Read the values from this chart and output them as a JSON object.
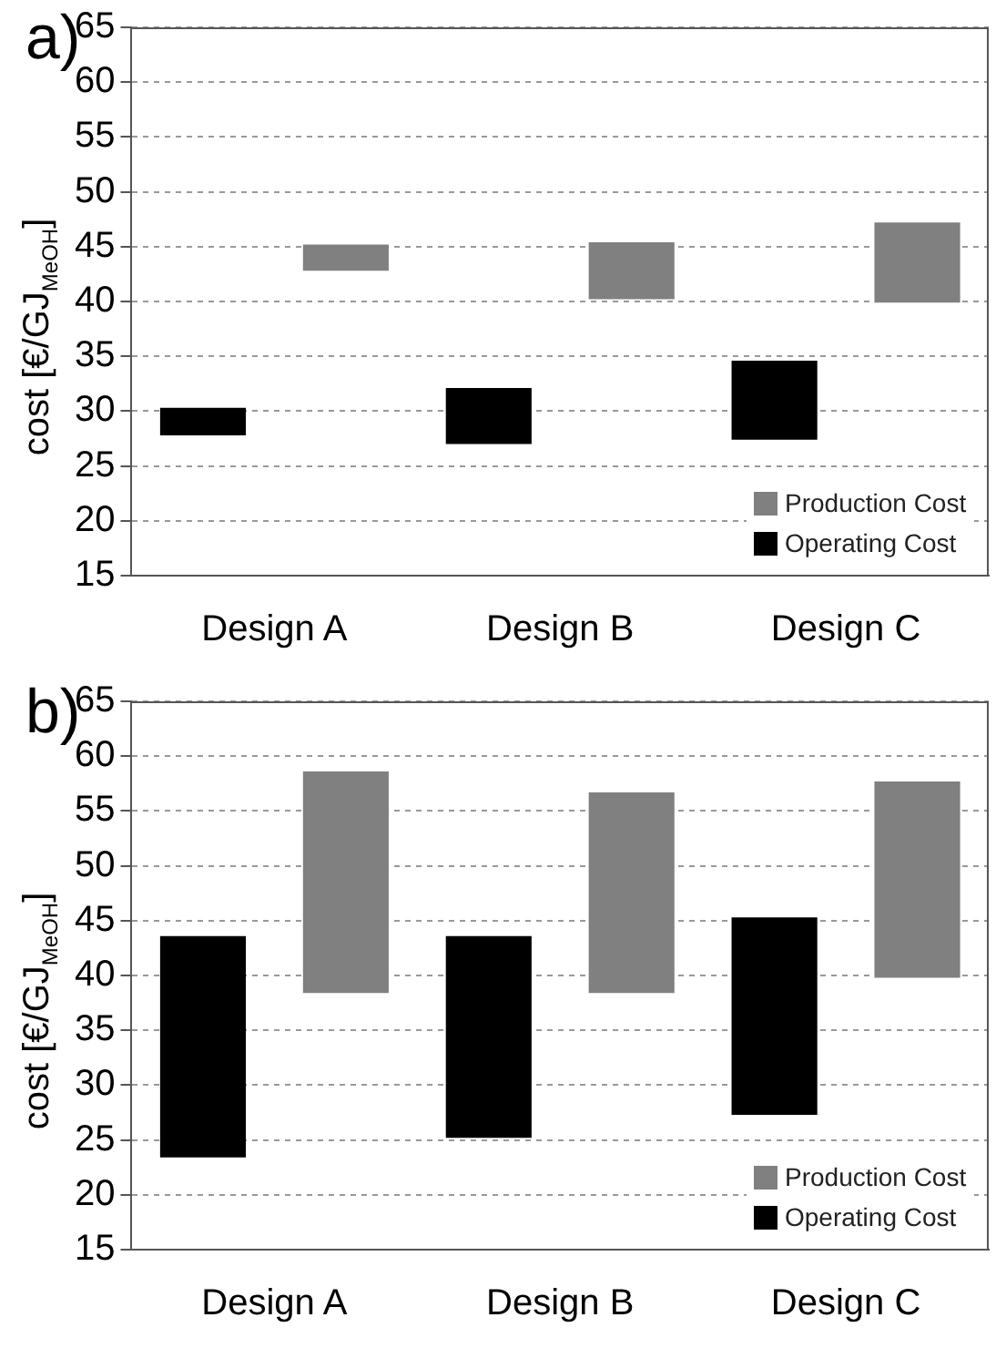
{
  "chart_data": [
    {
      "type": "bar",
      "title": "a)",
      "ylabel": "cost [€/GJ$_{MeOH}$]",
      "categories": [
        "Design A",
        "Design B",
        "Design C"
      ],
      "series": [
        {
          "name": "Operating Cost",
          "color": "#000000",
          "base": [
            27.8,
            27.0,
            27.4
          ],
          "values": [
            2.5,
            5.1,
            7.2
          ]
        },
        {
          "name": "Production Cost",
          "color": "#808080",
          "base": [
            42.8,
            40.2,
            39.9
          ],
          "values": [
            2.4,
            5.2,
            7.3
          ]
        }
      ],
      "ylim": [
        15,
        65
      ],
      "yticks": [
        15,
        20,
        25,
        30,
        35,
        40,
        45,
        50,
        55,
        60,
        65
      ],
      "grid": "y",
      "legend": "bottom right"
    },
    {
      "type": "bar",
      "title": "b)",
      "ylabel": "cost [€/GJ$_{MeOH}$]",
      "categories": [
        "Design A",
        "Design B",
        "Design C"
      ],
      "series": [
        {
          "name": "Operating Cost",
          "color": "#000000",
          "base": [
            23.4,
            25.2,
            27.3
          ],
          "values": [
            20.2,
            18.4,
            18.0
          ]
        },
        {
          "name": "Production Cost",
          "color": "#808080",
          "base": [
            38.4,
            38.4,
            39.8
          ],
          "values": [
            20.2,
            18.3,
            17.9
          ]
        }
      ],
      "ylim": [
        15,
        65
      ],
      "yticks": [
        15,
        20,
        25,
        30,
        35,
        40,
        45,
        50,
        55,
        60,
        65
      ],
      "grid": "y",
      "legend": "bottom right"
    }
  ]
}
